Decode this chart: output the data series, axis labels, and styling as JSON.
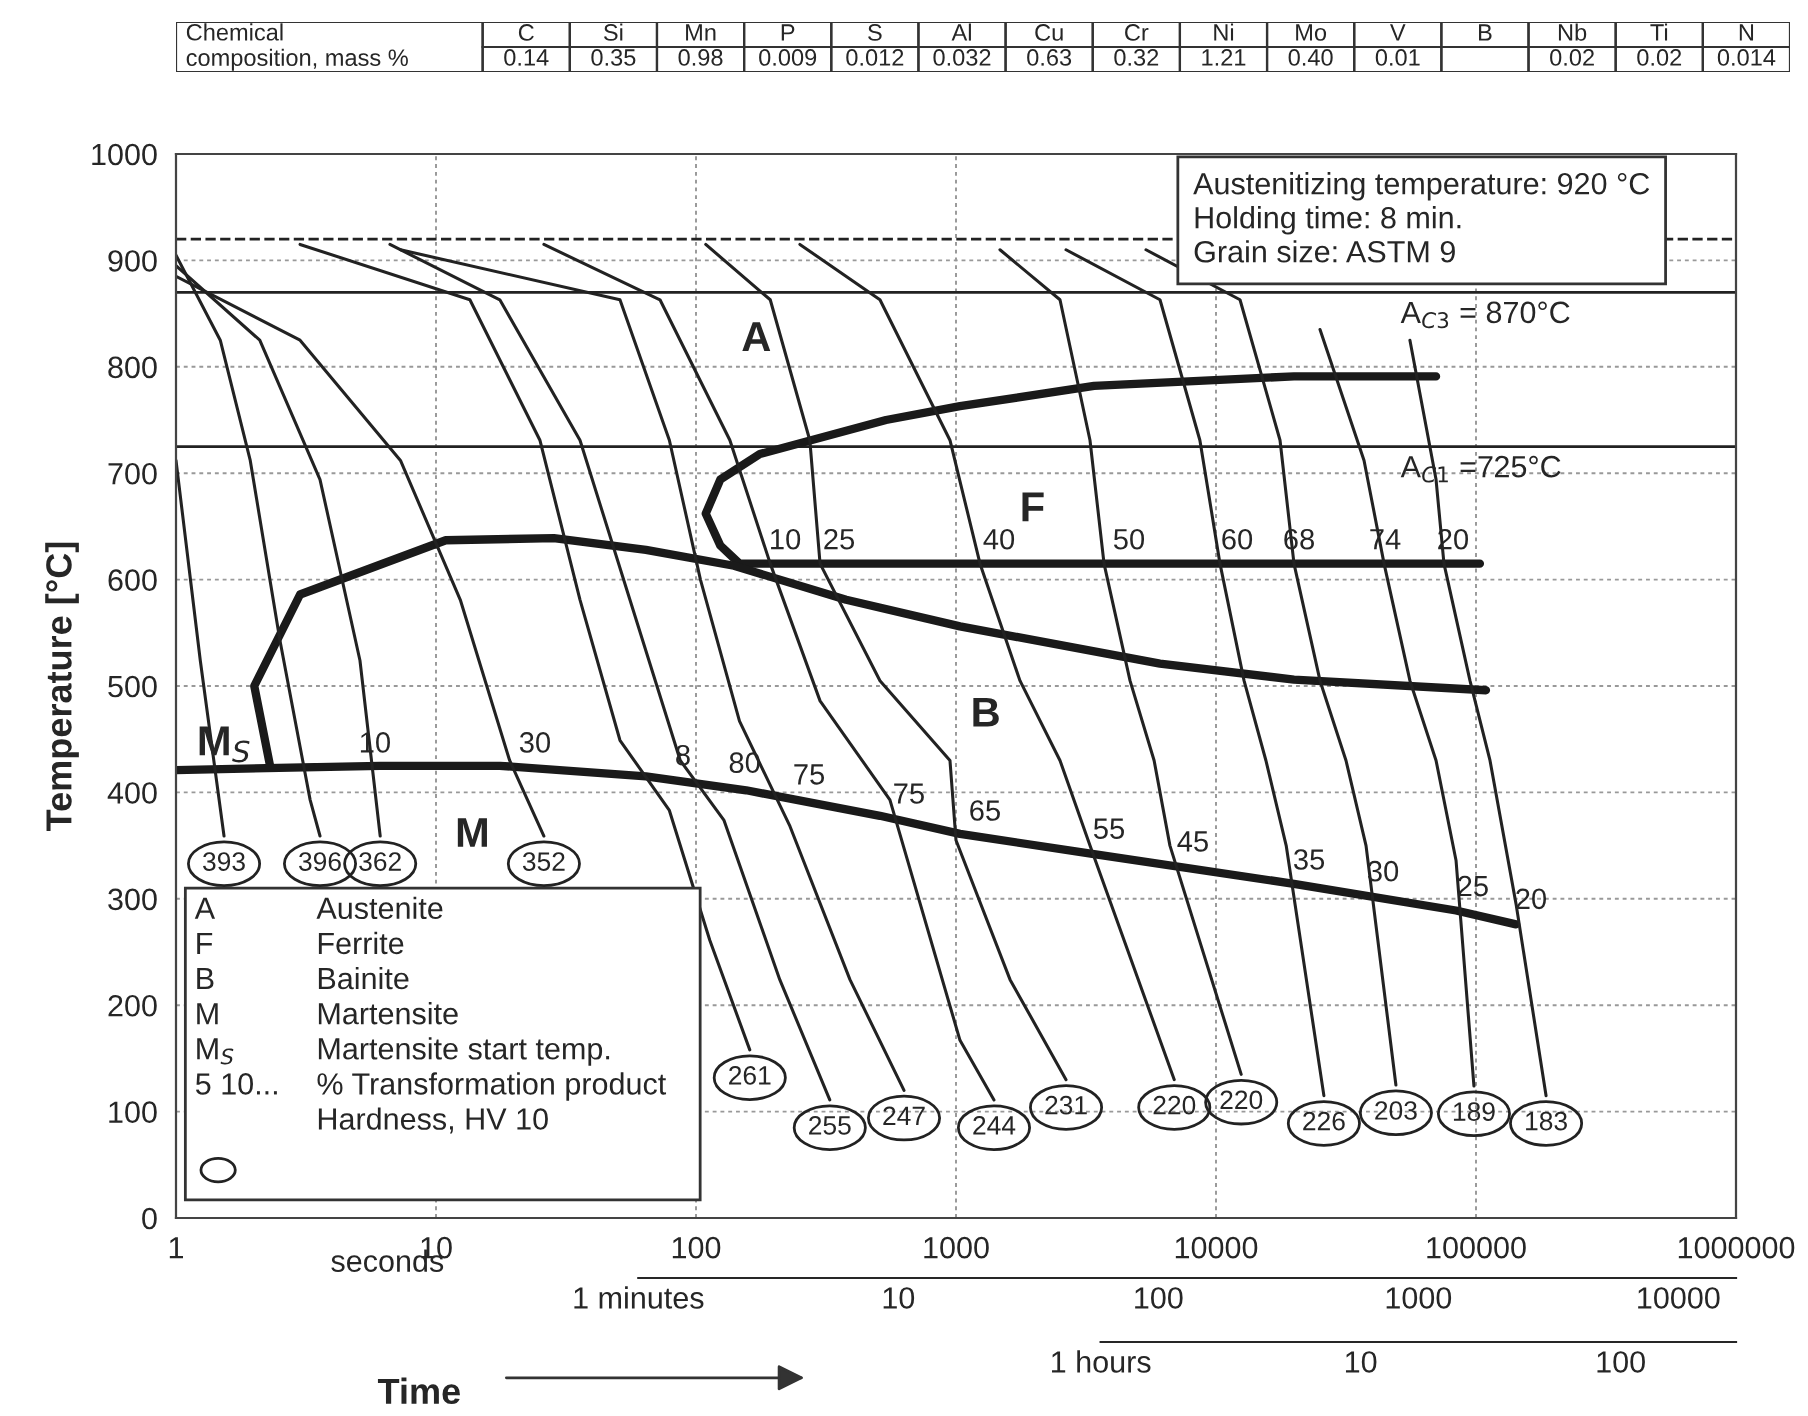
{
  "chart_data": [
    {
      "type": "other",
      "title": "Chemical composition, mass %",
      "categories": [
        "C",
        "Si",
        "Mn",
        "P",
        "S",
        "Al",
        "Cu",
        "Cr",
        "Ni",
        "Mo",
        "V",
        "B",
        "Nb",
        "Ti",
        "N"
      ],
      "values": [
        0.14,
        0.35,
        0.98,
        0.009,
        0.012,
        0.032,
        0.63,
        0.32,
        1.21,
        0.4,
        0.01,
        null,
        0.02,
        0.02,
        0.014
      ],
      "data_labels": true,
      "value_labels": [
        "0.14",
        "0.35",
        "0.98",
        "0.009",
        "0.012",
        "0.032",
        "0.63",
        "0.32",
        "1.21",
        "0.40",
        "0.01",
        null,
        "0.02",
        "0.02",
        "0.014"
      ]
    },
    {
      "type": "line",
      "xlabel": "Time",
      "ylabel": "Temperature [°C]",
      "log": "x",
      "grid": true,
      "xlim": [
        1,
        1000000
      ],
      "xticks": [
        1,
        10,
        100,
        1000,
        10000,
        100000,
        1000000
      ],
      "ylim": [
        0,
        1000
      ],
      "yticks": [
        0,
        100,
        200,
        300,
        400,
        500,
        600,
        700,
        800,
        900,
        1000
      ],
      "ref_lines": [
        {
          "axis": "y",
          "value": 920,
          "label": null,
          "line_style": "dashed",
          "color": "#222222"
        },
        {
          "axis": "y",
          "value": 870,
          "label": "A$_{C3}$ = 870°C",
          "color": "#222222"
        },
        {
          "axis": "y",
          "value": 725,
          "label": "A$_{C1}$ =725°C",
          "color": "#222222"
        }
      ],
      "series": [
        {
          "color": "#1a1a1a",
          "x": [
            70200,
            19950,
            3396,
            1036,
            538,
            176,
            124,
            109,
            124,
            147,
            103500
          ],
          "values": [
            791,
            791,
            782,
            763,
            750,
            718,
            694,
            662,
            632,
            615,
            615
          ]
        },
        {
          "color": "#1a1a1a",
          "x": [
            2.3,
            2.0,
            3.0,
            10.9,
            28.4,
            64.2,
            140,
            378,
            1036,
            6090,
            19950,
            109200
          ],
          "values": [
            425,
            500,
            586,
            637,
            639,
            628,
            613,
            581,
            556,
            521,
            506,
            496
          ]
        },
        {
          "color": "#1a1a1a",
          "x": [
            1,
            6.1,
            17.6,
            64.2,
            156,
            510,
            1036,
            3396,
            19950,
            83800,
            142600
          ],
          "values": [
            421,
            425,
            425,
            415,
            402,
            378,
            361,
            342,
            314,
            289,
            276
          ]
        },
        {
          "color": "#222222",
          "x": [
            1,
            1.24,
            1.53
          ],
          "values": [
            712,
            524,
            359
          ]
        },
        {
          "color": "#222222",
          "x": [
            1,
            1.48,
            1.93,
            2.51,
            3.28,
            3.58
          ],
          "values": [
            905,
            825,
            712,
            543,
            393,
            359
          ]
        },
        {
          "color": "#222222",
          "x": [
            1,
            2.1,
            3.58,
            5.1,
            6.1
          ],
          "values": [
            895,
            825,
            694,
            524,
            359
          ]
        },
        {
          "color": "#222222",
          "x": [
            1,
            3,
            7.3,
            12.4,
            19.2,
            26
          ],
          "values": [
            885,
            825,
            712,
            581,
            430,
            359
          ]
        },
        {
          "color": "#222222",
          "x": [
            3.0,
            13.5,
            25.1,
            35.8,
            51,
            79,
            113,
            161
          ],
          "values": [
            915,
            863,
            731,
            581,
            449,
            383,
            261,
            158
          ]
        },
        {
          "color": "#222222",
          "x": [
            6.65,
            17.6,
            35.8,
            55.7,
            87,
            128,
            210,
            327
          ],
          "values": [
            915,
            863,
            731,
            581,
            430,
            374,
            224,
            111
          ]
        },
        {
          "color": "#222222",
          "x": [
            7.3,
            51,
            79,
            104,
            147,
            230,
            391,
            631
          ],
          "values": [
            910,
            863,
            731,
            600,
            467,
            368,
            224,
            120
          ]
        },
        {
          "color": "#222222",
          "x": [
            26,
            72.7,
            135,
            193,
            300,
            557,
            1036,
            1400
          ],
          "values": [
            915,
            863,
            731,
            615,
            486,
            393,
            167,
            111
          ]
        },
        {
          "color": "#222222",
          "x": [
            109,
            193,
            274,
            300,
            510,
            948,
            1000,
            1614,
            2650
          ],
          "values": [
            915,
            863,
            731,
            615,
            505,
            430,
            355,
            224,
            130
          ]
        },
        {
          "color": "#222222",
          "x": [
            251,
            510,
            948,
            1237,
            1762,
            2512,
            3276,
            6910
          ],
          "values": [
            915,
            863,
            731,
            615,
            505,
            430,
            350,
            130
          ]
        },
        {
          "color": "#222222",
          "x": [
            1476,
            2512,
            3276,
            3710,
            4670,
            5780,
            6650,
            12500
          ],
          "values": [
            910,
            863,
            731,
            615,
            505,
            430,
            350,
            135
          ]
        },
        {
          "color": "#222222",
          "x": [
            2650,
            6090,
            8670,
            10360,
            12820,
            15560,
            18620,
            26000
          ],
          "values": [
            910,
            863,
            731,
            615,
            505,
            430,
            350,
            115
          ]
        },
        {
          "color": "#222222",
          "x": [
            5380,
            12370,
            17630,
            19950,
            25120,
            31620,
            37760,
            49200
          ],
          "values": [
            910,
            863,
            731,
            615,
            505,
            430,
            350,
            125
          ]
        },
        {
          "color": "#222222",
          "x": [
            25120,
            37100,
            44300,
            55700,
            70200,
            83800,
            98200
          ],
          "values": [
            835,
            712,
            615,
            505,
            430,
            336,
            124
          ]
        },
        {
          "color": "#222222",
          "x": [
            55700,
            70200,
            75300,
            94800,
            113200,
            142600,
            186000
          ],
          "values": [
            825,
            694,
            615,
            505,
            430,
            295,
            115
          ]
        }
      ],
      "annotations": [
        {
          "text": "10",
          "x": 4.92,
          "y": 424
        },
        {
          "text": "30",
          "x": 20.3,
          "y": 424
        },
        {
          "text": "8",
          "x": 80.9,
          "y": 412
        },
        {
          "text": "80",
          "x": 130,
          "y": 405
        },
        {
          "text": "75",
          "x": 230,
          "y": 394
        },
        {
          "text": "75",
          "x": 557,
          "y": 376
        },
        {
          "text": "65",
          "x": 1092,
          "y": 360
        },
        {
          "text": "55",
          "x": 3276,
          "y": 343
        },
        {
          "text": "45",
          "x": 6890,
          "y": 331
        },
        {
          "text": "35",
          "x": 19270,
          "y": 314
        },
        {
          "text": "30",
          "x": 37100,
          "y": 303
        },
        {
          "text": "25",
          "x": 82200,
          "y": 289
        },
        {
          "text": "20",
          "x": 137500,
          "y": 277
        },
        {
          "text": "10",
          "x": 186,
          "y": 615
        },
        {
          "text": "25",
          "x": 300,
          "y": 615
        },
        {
          "text": "40",
          "x": 1237,
          "y": 615
        },
        {
          "text": "50",
          "x": 3910,
          "y": 615
        },
        {
          "text": "60",
          "x": 10180,
          "y": 615
        },
        {
          "text": "68",
          "x": 17630,
          "y": 615
        },
        {
          "text": "74",
          "x": 37760,
          "y": 615
        },
        {
          "text": "20",
          "x": 68900,
          "y": 615
        },
        {
          "text": "393",
          "x": 1.53,
          "y": 359
        },
        {
          "text": "396",
          "x": 3.58,
          "y": 359
        },
        {
          "text": "362",
          "x": 6.1,
          "y": 359
        },
        {
          "text": "352",
          "x": 26,
          "y": 359
        },
        {
          "text": "261",
          "x": 161,
          "y": 158
        },
        {
          "text": "255",
          "x": 327,
          "y": 111
        },
        {
          "text": "247",
          "x": 631,
          "y": 120
        },
        {
          "text": "244",
          "x": 1400,
          "y": 111
        },
        {
          "text": "231",
          "x": 2650,
          "y": 130
        },
        {
          "text": "220",
          "x": 6910,
          "y": 130
        },
        {
          "text": "220",
          "x": 12500,
          "y": 135
        },
        {
          "text": "226",
          "x": 26000,
          "y": 115
        },
        {
          "text": "203",
          "x": 49200,
          "y": 125
        },
        {
          "text": "189",
          "x": 98200,
          "y": 124
        },
        {
          "text": "183",
          "x": 186000,
          "y": 115
        },
        "A",
        "F",
        "B",
        "M",
        "M$_{S}$",
        "Austenitizing temperature: 920 °C\nHolding time: 8 min.\nGrain size: ASTM 9",
        "A\nF\nB\nM\nM$_{S}$\n5 10...",
        "Austenite\nFerrite\nBainite\nMartensite\nMartensite start temp.\n% Transformation product\nHardness, HV 10",
        "seconds",
        "1 minutes",
        "10",
        "100",
        "1000",
        "10000",
        "1 hours",
        "10",
        "100"
      ]
    }
  ]
}
